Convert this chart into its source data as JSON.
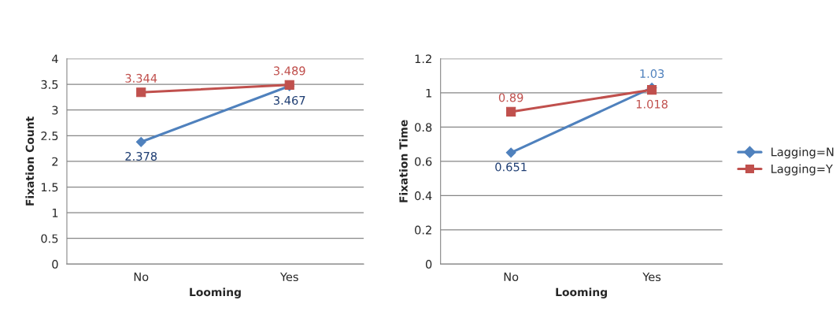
{
  "chart_data": [
    {
      "type": "line",
      "ylabel": "Fixation Count",
      "xlabel": "Looming",
      "categories": [
        "No",
        "Yes"
      ],
      "ylim": [
        0,
        4
      ],
      "yticks": [
        0,
        0.5,
        1,
        1.5,
        2,
        2.5,
        3,
        3.5,
        4
      ],
      "grid": "y",
      "data_labels": true,
      "legend": false,
      "series": [
        {
          "color": "#4f81bd",
          "marker": "diamond",
          "values": [
            2.378,
            3.467
          ]
        },
        {
          "color": "#c0504d",
          "marker": "square",
          "values": [
            3.344,
            3.489
          ]
        }
      ]
    },
    {
      "type": "line",
      "ylabel": "Fixation Time",
      "xlabel": "Looming",
      "categories": [
        "No",
        "Yes"
      ],
      "ylim": [
        0,
        1.2
      ],
      "yticks": [
        0,
        0.2,
        0.4,
        0.6,
        0.8,
        1,
        1.2
      ],
      "grid": "y",
      "data_labels": true,
      "legend": "right",
      "series": [
        {
          "name": "Lagging=N",
          "color": "#4f81bd",
          "marker": "diamond",
          "values": [
            0.651,
            1.03
          ]
        },
        {
          "name": "Lagging=Y",
          "color": "#c0504d",
          "marker": "square",
          "values": [
            0.89,
            1.018
          ]
        }
      ]
    }
  ]
}
